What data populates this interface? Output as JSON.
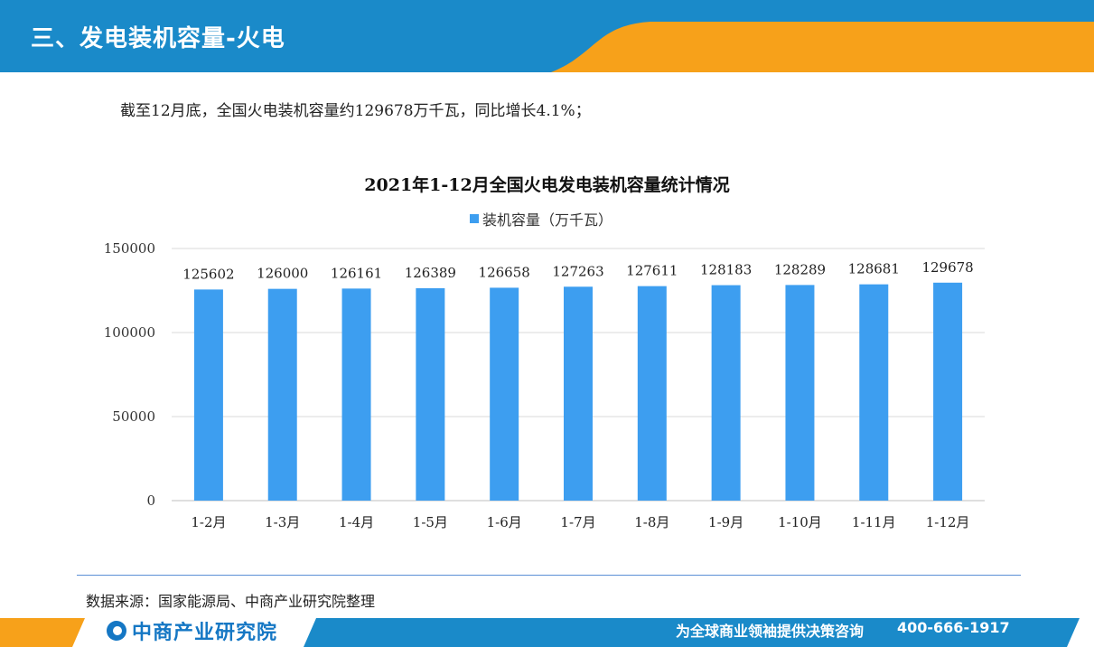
{
  "header": {
    "title": "三、发电装机容量-火电"
  },
  "intro": "截至12月底，全国火电装机容量约129678万千瓦，同比增长4.1%；",
  "chart_data": {
    "type": "bar",
    "title": "2021年1-12月全国火电发电装机容量统计情况",
    "legend_position": "top",
    "series": [
      {
        "name": "装机容量（万千瓦）",
        "color": "#3d9ef0",
        "values": [
          125602,
          126000,
          126161,
          126389,
          126658,
          127263,
          127611,
          128183,
          128289,
          128681,
          129678
        ]
      }
    ],
    "categories": [
      "1-2月",
      "1-3月",
      "1-4月",
      "1-5月",
      "1-6月",
      "1-7月",
      "1-8月",
      "1-9月",
      "1-10月",
      "1-11月",
      "1-12月"
    ],
    "ylim": [
      0,
      150000
    ],
    "yticks": [
      "0",
      "50000",
      "100000",
      "150000"
    ],
    "grid": true
  },
  "source": "数据来源：国家能源局、中商产业研究院整理",
  "footer": {
    "logo_text": "中商产业研究院",
    "slogan": "为全球商业领袖提供决策咨询",
    "phone": "400-666-1917"
  },
  "colors": {
    "header_blue": "#1a8ac9",
    "accent_orange": "#f7a11a",
    "bar": "#3d9ef0"
  }
}
